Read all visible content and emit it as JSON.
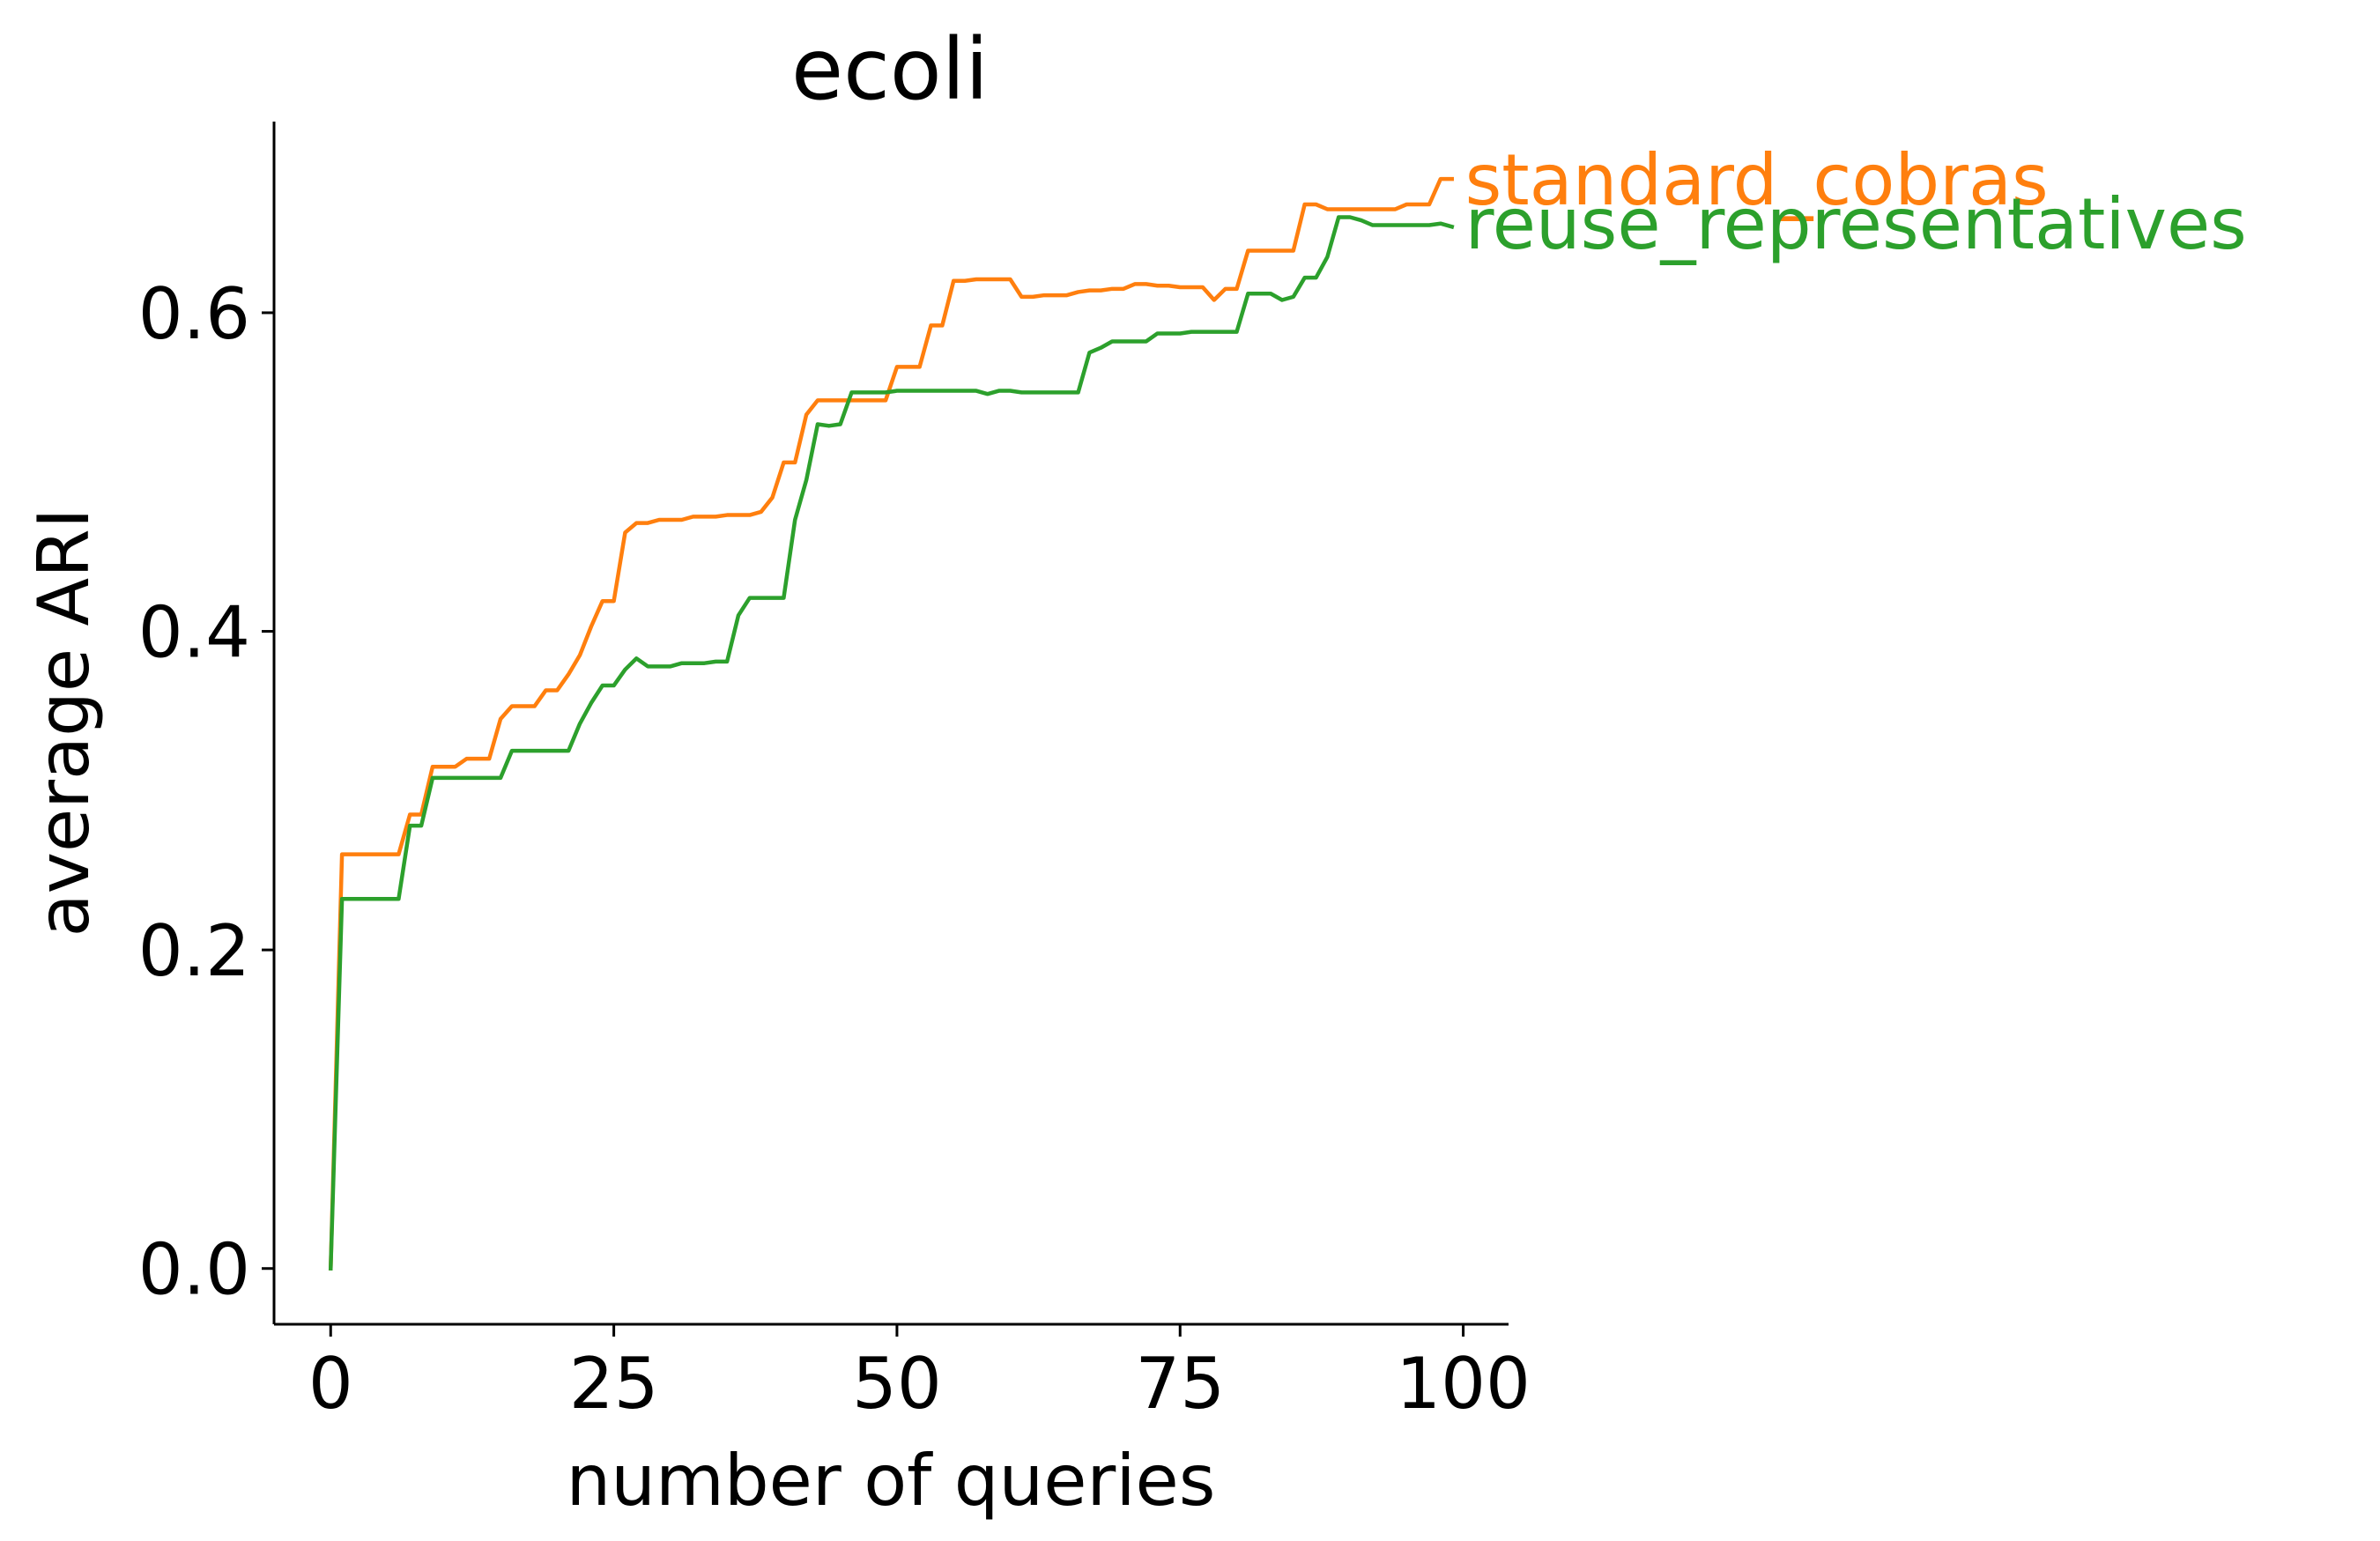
{
  "chart_data": {
    "type": "line",
    "title": "ecoli",
    "xlabel": "number of queries",
    "ylabel": "average ARI",
    "xlim": [
      -5,
      104
    ],
    "ylim": [
      -0.035,
      0.72
    ],
    "xticks": [
      0,
      25,
      50,
      75,
      100
    ],
    "xtick_labels": [
      "0",
      "25",
      "50",
      "75",
      "100"
    ],
    "yticks": [
      0.0,
      0.2,
      0.4,
      0.6
    ],
    "ytick_labels": [
      "0.0",
      "0.2",
      "0.4",
      "0.6"
    ],
    "grid": false,
    "legend": "labels at right end of each line",
    "series": [
      {
        "name": "standard_cobras",
        "color": "#ff7f0e",
        "points": [
          [
            0,
            0.0
          ],
          [
            1,
            0.26
          ],
          [
            2,
            0.26
          ],
          [
            3,
            0.26
          ],
          [
            4,
            0.26
          ],
          [
            5,
            0.26
          ],
          [
            6,
            0.26
          ],
          [
            7,
            0.285
          ],
          [
            8,
            0.285
          ],
          [
            9,
            0.315
          ],
          [
            10,
            0.315
          ],
          [
            11,
            0.315
          ],
          [
            12,
            0.32
          ],
          [
            13,
            0.32
          ],
          [
            14,
            0.32
          ],
          [
            15,
            0.345
          ],
          [
            16,
            0.353
          ],
          [
            17,
            0.353
          ],
          [
            18,
            0.353
          ],
          [
            19,
            0.363
          ],
          [
            20,
            0.363
          ],
          [
            21,
            0.373
          ],
          [
            22,
            0.385
          ],
          [
            23,
            0.403
          ],
          [
            24,
            0.419
          ],
          [
            25,
            0.419
          ],
          [
            26,
            0.462
          ],
          [
            27,
            0.468
          ],
          [
            28,
            0.468
          ],
          [
            29,
            0.47
          ],
          [
            30,
            0.47
          ],
          [
            31,
            0.47
          ],
          [
            32,
            0.472
          ],
          [
            33,
            0.472
          ],
          [
            34,
            0.472
          ],
          [
            35,
            0.473
          ],
          [
            36,
            0.473
          ],
          [
            37,
            0.473
          ],
          [
            38,
            0.475
          ],
          [
            39,
            0.484
          ],
          [
            40,
            0.506
          ],
          [
            41,
            0.506
          ],
          [
            42,
            0.536
          ],
          [
            43,
            0.545
          ],
          [
            44,
            0.545
          ],
          [
            45,
            0.545
          ],
          [
            46,
            0.545
          ],
          [
            47,
            0.545
          ],
          [
            48,
            0.545
          ],
          [
            49,
            0.545
          ],
          [
            50,
            0.566
          ],
          [
            51,
            0.566
          ],
          [
            52,
            0.566
          ],
          [
            53,
            0.592
          ],
          [
            54,
            0.592
          ],
          [
            55,
            0.62
          ],
          [
            56,
            0.62
          ],
          [
            57,
            0.621
          ],
          [
            58,
            0.621
          ],
          [
            59,
            0.621
          ],
          [
            60,
            0.621
          ],
          [
            61,
            0.61
          ],
          [
            62,
            0.61
          ],
          [
            63,
            0.611
          ],
          [
            64,
            0.611
          ],
          [
            65,
            0.611
          ],
          [
            66,
            0.613
          ],
          [
            67,
            0.614
          ],
          [
            68,
            0.614
          ],
          [
            69,
            0.615
          ],
          [
            70,
            0.615
          ],
          [
            71,
            0.618
          ],
          [
            72,
            0.618
          ],
          [
            73,
            0.617
          ],
          [
            74,
            0.617
          ],
          [
            75,
            0.616
          ],
          [
            76,
            0.616
          ],
          [
            77,
            0.616
          ],
          [
            78,
            0.608
          ],
          [
            79,
            0.615
          ],
          [
            80,
            0.615
          ],
          [
            81,
            0.639
          ],
          [
            82,
            0.639
          ],
          [
            83,
            0.639
          ],
          [
            84,
            0.639
          ],
          [
            85,
            0.639
          ],
          [
            86,
            0.668
          ],
          [
            87,
            0.668
          ],
          [
            88,
            0.665
          ],
          [
            89,
            0.665
          ],
          [
            90,
            0.665
          ],
          [
            91,
            0.665
          ],
          [
            92,
            0.665
          ],
          [
            93,
            0.665
          ],
          [
            94,
            0.665
          ],
          [
            95,
            0.668
          ],
          [
            96,
            0.668
          ],
          [
            97,
            0.668
          ],
          [
            98,
            0.684
          ],
          [
            99,
            0.684
          ]
        ]
      },
      {
        "name": "reuse_representatives",
        "color": "#2ca02c",
        "points": [
          [
            0,
            0.0
          ],
          [
            1,
            0.232
          ],
          [
            2,
            0.232
          ],
          [
            3,
            0.232
          ],
          [
            4,
            0.232
          ],
          [
            5,
            0.232
          ],
          [
            6,
            0.232
          ],
          [
            7,
            0.278
          ],
          [
            8,
            0.278
          ],
          [
            9,
            0.308
          ],
          [
            10,
            0.308
          ],
          [
            11,
            0.308
          ],
          [
            12,
            0.308
          ],
          [
            13,
            0.308
          ],
          [
            14,
            0.308
          ],
          [
            15,
            0.308
          ],
          [
            16,
            0.325
          ],
          [
            17,
            0.325
          ],
          [
            18,
            0.325
          ],
          [
            19,
            0.325
          ],
          [
            20,
            0.325
          ],
          [
            21,
            0.325
          ],
          [
            22,
            0.342
          ],
          [
            23,
            0.355
          ],
          [
            24,
            0.366
          ],
          [
            25,
            0.366
          ],
          [
            26,
            0.376
          ],
          [
            27,
            0.383
          ],
          [
            28,
            0.378
          ],
          [
            29,
            0.378
          ],
          [
            30,
            0.378
          ],
          [
            31,
            0.38
          ],
          [
            32,
            0.38
          ],
          [
            33,
            0.38
          ],
          [
            34,
            0.381
          ],
          [
            35,
            0.381
          ],
          [
            36,
            0.41
          ],
          [
            37,
            0.421
          ],
          [
            38,
            0.421
          ],
          [
            39,
            0.421
          ],
          [
            40,
            0.421
          ],
          [
            41,
            0.47
          ],
          [
            42,
            0.495
          ],
          [
            43,
            0.53
          ],
          [
            44,
            0.529
          ],
          [
            45,
            0.53
          ],
          [
            46,
            0.55
          ],
          [
            47,
            0.55
          ],
          [
            48,
            0.55
          ],
          [
            49,
            0.55
          ],
          [
            50,
            0.551
          ],
          [
            51,
            0.551
          ],
          [
            52,
            0.551
          ],
          [
            53,
            0.551
          ],
          [
            54,
            0.551
          ],
          [
            55,
            0.551
          ],
          [
            56,
            0.551
          ],
          [
            57,
            0.551
          ],
          [
            58,
            0.549
          ],
          [
            59,
            0.551
          ],
          [
            60,
            0.551
          ],
          [
            61,
            0.55
          ],
          [
            62,
            0.55
          ],
          [
            63,
            0.55
          ],
          [
            64,
            0.55
          ],
          [
            65,
            0.55
          ],
          [
            66,
            0.55
          ],
          [
            67,
            0.575
          ],
          [
            68,
            0.578
          ],
          [
            69,
            0.582
          ],
          [
            70,
            0.582
          ],
          [
            71,
            0.582
          ],
          [
            72,
            0.582
          ],
          [
            73,
            0.587
          ],
          [
            74,
            0.587
          ],
          [
            75,
            0.587
          ],
          [
            76,
            0.588
          ],
          [
            77,
            0.588
          ],
          [
            78,
            0.588
          ],
          [
            79,
            0.588
          ],
          [
            80,
            0.588
          ],
          [
            81,
            0.612
          ],
          [
            82,
            0.612
          ],
          [
            83,
            0.612
          ],
          [
            84,
            0.608
          ],
          [
            85,
            0.61
          ],
          [
            86,
            0.622
          ],
          [
            87,
            0.622
          ],
          [
            88,
            0.635
          ],
          [
            89,
            0.66
          ],
          [
            90,
            0.66
          ],
          [
            91,
            0.658
          ],
          [
            92,
            0.655
          ],
          [
            93,
            0.655
          ],
          [
            94,
            0.655
          ],
          [
            95,
            0.655
          ],
          [
            96,
            0.655
          ],
          [
            97,
            0.655
          ],
          [
            98,
            0.656
          ],
          [
            99,
            0.654
          ]
        ]
      }
    ]
  }
}
